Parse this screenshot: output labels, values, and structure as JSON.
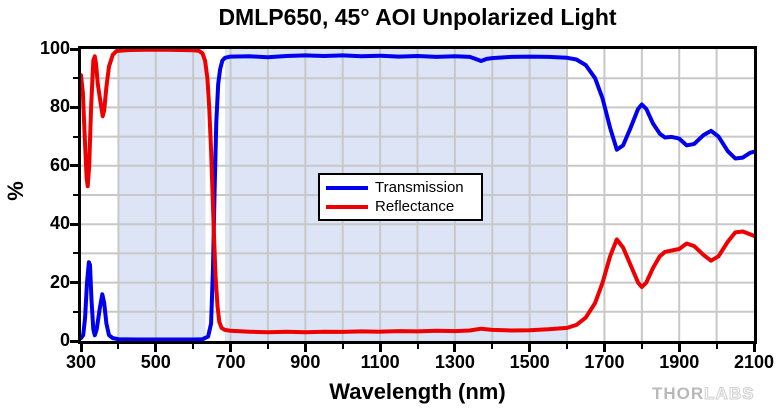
{
  "title": "DMLP650, 45° AOI Unpolarized Light",
  "axes": {
    "x": {
      "label": "Wavelength (nm)",
      "min": 300,
      "max": 2100,
      "major_ticks": [
        300,
        500,
        700,
        900,
        1100,
        1300,
        1500,
        1700,
        1900,
        2100
      ],
      "minor_tick_step": 100
    },
    "y": {
      "label": "%",
      "min": 0,
      "max": 100,
      "major_ticks": [
        0,
        20,
        40,
        60,
        80,
        100
      ],
      "minor_tick_step": 10
    }
  },
  "legend": {
    "items": [
      {
        "label": "Transmission",
        "color": "#0000ee"
      },
      {
        "label": "Reflectance",
        "color": "#ee0000"
      }
    ]
  },
  "shaded_bands": [
    {
      "from_nm": 400,
      "to_nm": 633
    },
    {
      "from_nm": 685,
      "to_nm": 1600
    }
  ],
  "watermark": {
    "solid": "THOR",
    "outline": "LABS"
  },
  "colors": {
    "transmission": "#0000ee",
    "reflectance": "#ee0000",
    "band_fill": "#dce4f5",
    "grid": "#c8c8c8",
    "axis": "#000000"
  },
  "chart_data": {
    "type": "line",
    "title": "DMLP650, 45° AOI Unpolarized Light",
    "xlabel": "Wavelength (nm)",
    "ylabel": "%",
    "xlim": [
      300,
      2100
    ],
    "ylim": [
      0,
      100
    ],
    "grid": true,
    "legend_position": "center",
    "shaded_bands_nm": [
      [
        400,
        633
      ],
      [
        685,
        1600
      ]
    ],
    "series": [
      {
        "name": "Transmission",
        "color": "#0000ee",
        "points": [
          [
            300,
            1
          ],
          [
            306,
            2
          ],
          [
            311,
            8
          ],
          [
            316,
            20
          ],
          [
            321,
            27
          ],
          [
            324,
            26
          ],
          [
            328,
            14
          ],
          [
            333,
            4
          ],
          [
            337,
            2
          ],
          [
            342,
            4
          ],
          [
            350,
            11
          ],
          [
            357,
            16
          ],
          [
            362,
            13
          ],
          [
            368,
            6
          ],
          [
            375,
            2
          ],
          [
            385,
            1
          ],
          [
            400,
            0.6
          ],
          [
            450,
            0.5
          ],
          [
            500,
            0.5
          ],
          [
            550,
            0.5
          ],
          [
            600,
            0.5
          ],
          [
            625,
            0.6
          ],
          [
            640,
            1.5
          ],
          [
            648,
            6
          ],
          [
            653,
            25
          ],
          [
            657,
            50
          ],
          [
            662,
            75
          ],
          [
            667,
            88
          ],
          [
            672,
            93
          ],
          [
            678,
            96
          ],
          [
            685,
            97
          ],
          [
            700,
            97.4
          ],
          [
            750,
            97.5
          ],
          [
            800,
            97.2
          ],
          [
            850,
            97.6
          ],
          [
            900,
            97.8
          ],
          [
            950,
            97.6
          ],
          [
            1000,
            97.8
          ],
          [
            1050,
            97.5
          ],
          [
            1100,
            97.7
          ],
          [
            1150,
            97.4
          ],
          [
            1200,
            97.6
          ],
          [
            1250,
            97.3
          ],
          [
            1300,
            97.5
          ],
          [
            1340,
            97.3
          ],
          [
            1355,
            96.6
          ],
          [
            1370,
            95.9
          ],
          [
            1385,
            96.6
          ],
          [
            1400,
            96.9
          ],
          [
            1450,
            97.3
          ],
          [
            1500,
            97.4
          ],
          [
            1550,
            97.3
          ],
          [
            1600,
            97
          ],
          [
            1625,
            96.4
          ],
          [
            1650,
            94.5
          ],
          [
            1675,
            90
          ],
          [
            1695,
            83
          ],
          [
            1715,
            73
          ],
          [
            1733,
            65.5
          ],
          [
            1750,
            67
          ],
          [
            1770,
            73
          ],
          [
            1790,
            79.5
          ],
          [
            1800,
            81
          ],
          [
            1812,
            79.5
          ],
          [
            1830,
            74.5
          ],
          [
            1848,
            71
          ],
          [
            1862,
            69.7
          ],
          [
            1880,
            69.9
          ],
          [
            1900,
            69.3
          ],
          [
            1920,
            67
          ],
          [
            1940,
            67.5
          ],
          [
            1965,
            70.5
          ],
          [
            1985,
            72
          ],
          [
            2005,
            70
          ],
          [
            2030,
            65
          ],
          [
            2050,
            62.5
          ],
          [
            2070,
            62.8
          ],
          [
            2090,
            64.5
          ],
          [
            2100,
            64.8
          ]
        ]
      },
      {
        "name": "Reflectance",
        "color": "#ee0000",
        "points": [
          [
            300,
            91
          ],
          [
            305,
            85
          ],
          [
            310,
            70
          ],
          [
            315,
            56
          ],
          [
            318,
            53
          ],
          [
            322,
            60
          ],
          [
            327,
            80
          ],
          [
            333,
            96
          ],
          [
            337,
            97.5
          ],
          [
            340,
            95
          ],
          [
            345,
            88
          ],
          [
            352,
            82
          ],
          [
            358,
            77
          ],
          [
            362,
            79
          ],
          [
            368,
            87
          ],
          [
            375,
            94
          ],
          [
            385,
            98
          ],
          [
            395,
            99.3
          ],
          [
            420,
            99.6
          ],
          [
            450,
            99.7
          ],
          [
            500,
            99.8
          ],
          [
            550,
            99.7
          ],
          [
            600,
            99.6
          ],
          [
            615,
            99.4
          ],
          [
            625,
            98.5
          ],
          [
            632,
            96
          ],
          [
            638,
            90
          ],
          [
            643,
            80
          ],
          [
            648,
            65
          ],
          [
            652,
            50
          ],
          [
            656,
            35
          ],
          [
            660,
            22
          ],
          [
            665,
            12
          ],
          [
            670,
            6.5
          ],
          [
            676,
            4.5
          ],
          [
            685,
            3.8
          ],
          [
            700,
            3.5
          ],
          [
            750,
            3.2
          ],
          [
            800,
            3.0
          ],
          [
            850,
            3.2
          ],
          [
            900,
            3.0
          ],
          [
            950,
            3.2
          ],
          [
            1000,
            3.1
          ],
          [
            1050,
            3.3
          ],
          [
            1100,
            3.2
          ],
          [
            1150,
            3.4
          ],
          [
            1200,
            3.3
          ],
          [
            1250,
            3.5
          ],
          [
            1300,
            3.4
          ],
          [
            1340,
            3.6
          ],
          [
            1370,
            4.2
          ],
          [
            1400,
            3.8
          ],
          [
            1450,
            3.6
          ],
          [
            1500,
            3.7
          ],
          [
            1550,
            4.0
          ],
          [
            1600,
            4.5
          ],
          [
            1625,
            5.5
          ],
          [
            1650,
            8
          ],
          [
            1675,
            13
          ],
          [
            1695,
            20
          ],
          [
            1715,
            29
          ],
          [
            1733,
            34.8
          ],
          [
            1750,
            32
          ],
          [
            1770,
            26
          ],
          [
            1790,
            20
          ],
          [
            1800,
            18.5
          ],
          [
            1812,
            20
          ],
          [
            1830,
            25
          ],
          [
            1848,
            29
          ],
          [
            1862,
            30.5
          ],
          [
            1880,
            31
          ],
          [
            1900,
            31.5
          ],
          [
            1920,
            33.4
          ],
          [
            1940,
            32.5
          ],
          [
            1965,
            29.5
          ],
          [
            1985,
            27.5
          ],
          [
            2005,
            29
          ],
          [
            2030,
            34
          ],
          [
            2050,
            37.2
          ],
          [
            2070,
            37.5
          ],
          [
            2090,
            36.5
          ],
          [
            2100,
            36
          ]
        ]
      }
    ]
  }
}
